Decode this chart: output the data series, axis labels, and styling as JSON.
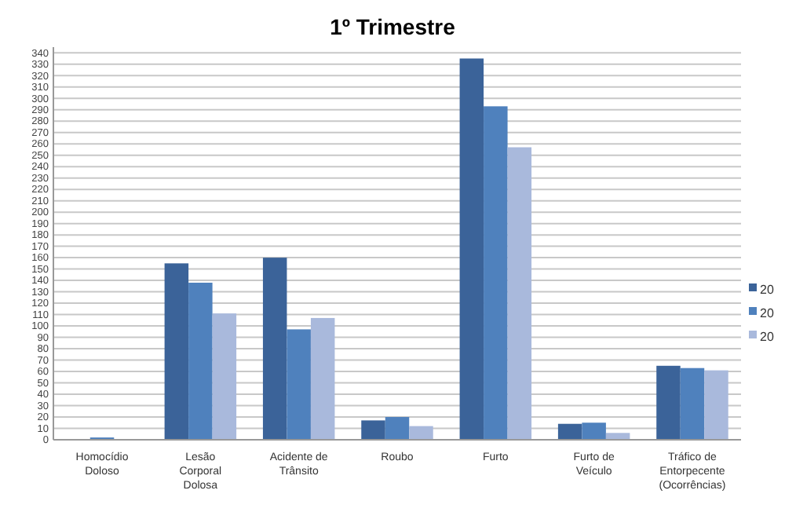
{
  "chart_data": {
    "type": "bar",
    "title": "1º Trimestre",
    "categories": [
      "Homocídio Doloso",
      "Lesão Corporal Dolosa",
      "Acidente de Trânsito",
      "Roubo",
      "Furto",
      "Furto de Veículo",
      "Tráfico de Entorpecente (Ocorrências)"
    ],
    "series": [
      {
        "name": "20",
        "color": "#3b6399",
        "values": [
          0,
          155,
          160,
          17,
          335,
          14,
          65
        ]
      },
      {
        "name": "20",
        "color": "#4f81bd",
        "values": [
          2,
          138,
          97,
          20,
          293,
          15,
          63
        ]
      },
      {
        "name": "20",
        "color": "#a9b9dc",
        "values": [
          0,
          111,
          107,
          12,
          257,
          6,
          61
        ]
      }
    ],
    "ylim": [
      0,
      345
    ],
    "yticks": [
      0,
      10,
      20,
      30,
      40,
      50,
      60,
      70,
      80,
      90,
      100,
      110,
      120,
      130,
      140,
      150,
      160,
      170,
      180,
      190,
      200,
      210,
      220,
      230,
      240,
      250,
      260,
      270,
      280,
      290,
      300,
      310,
      320,
      330,
      340
    ],
    "grid": "y",
    "legend": "right"
  }
}
